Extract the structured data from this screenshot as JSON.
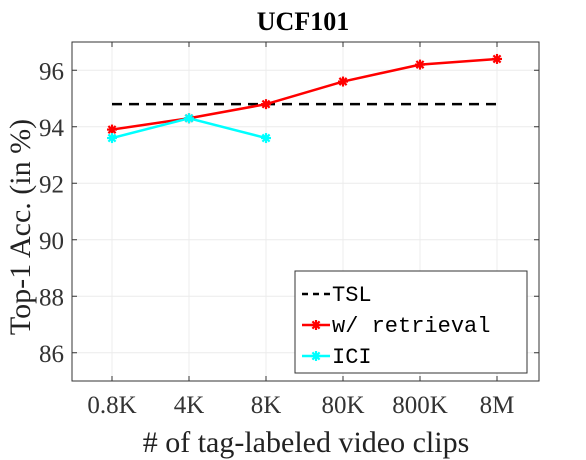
{
  "chart_data": {
    "type": "line",
    "title": "UCF101",
    "xlabel": "# of tag-labeled video clips",
    "ylabel": "Top-1 Acc. (in %)",
    "categories": [
      "0.8K",
      "4K",
      "8K",
      "80K",
      "800K",
      "8M"
    ],
    "ylim": [
      85,
      97
    ],
    "yticks": [
      86,
      88,
      90,
      92,
      94,
      96
    ],
    "grid": true,
    "legend_position": "bottom-right",
    "series": [
      {
        "name": "TSL",
        "values": [
          94.8,
          94.8,
          94.8,
          94.8,
          94.8,
          94.8
        ],
        "color": "#000000",
        "style": "dashed",
        "marker": "none"
      },
      {
        "name": "w/ retrieval",
        "values": [
          93.9,
          94.3,
          94.8,
          95.6,
          96.2,
          96.4
        ],
        "color": "#ff0000",
        "style": "solid",
        "marker": "asterisk"
      },
      {
        "name": "ICI",
        "values": [
          93.6,
          94.3,
          93.6,
          null,
          null,
          null
        ],
        "color": "#00ffff",
        "style": "solid",
        "marker": "asterisk"
      }
    ]
  }
}
